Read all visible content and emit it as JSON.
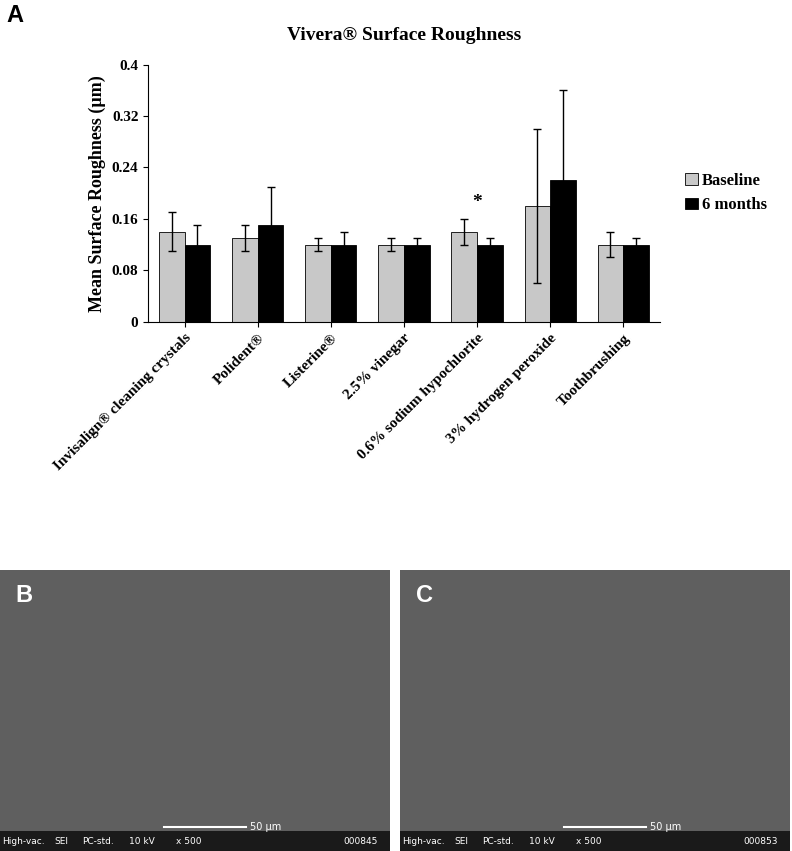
{
  "chart_data": {
    "type": "bar",
    "panel_label": "A",
    "title": "Vivera® Surface Roughness",
    "y_label": "Mean Surface Roughness (µm)",
    "categories": [
      "Invisalign® cleaning crystals",
      "Polident®",
      "Listerine®",
      "2.5% vinegar",
      "0.6% sodium hypochlorite",
      "3% hydrogen peroxide",
      "Toothbrushing"
    ],
    "series": [
      {
        "name": "Baseline",
        "color": "#c8c8c8",
        "values": [
          0.14,
          0.13,
          0.12,
          0.12,
          0.14,
          0.18,
          0.12
        ],
        "errors": [
          0.03,
          0.02,
          0.01,
          0.01,
          0.02,
          0.12,
          0.02
        ]
      },
      {
        "name": "6 months",
        "color": "#000000",
        "values": [
          0.12,
          0.15,
          0.12,
          0.12,
          0.12,
          0.22,
          0.12
        ],
        "errors": [
          0.03,
          0.06,
          0.02,
          0.01,
          0.01,
          0.14,
          0.01
        ]
      }
    ],
    "annotations": [
      {
        "text": "*",
        "category": "0.6% sodium hypochlorite"
      }
    ],
    "ylim": [
      0,
      0.4
    ],
    "yticks": [
      0,
      0.08,
      0.16,
      0.24,
      0.32,
      0.4
    ],
    "grid": false,
    "legend": "center left"
  },
  "images": [
    {
      "label": "B",
      "scale_bar": "50 µm",
      "info": [
        "High-vac.",
        "SEI",
        "PC-std.",
        "10 kV",
        "x 500",
        "000845"
      ]
    },
    {
      "label": "C",
      "scale_bar": "50 µm",
      "info": [
        "High-vac.",
        "SEI",
        "PC-std.",
        "10 kV",
        "x 500",
        "000853"
      ]
    }
  ]
}
